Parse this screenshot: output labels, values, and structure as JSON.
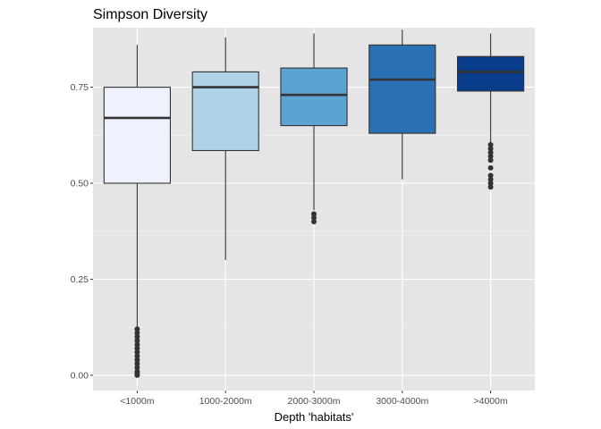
{
  "chart_data": {
    "type": "boxplot",
    "title": "Simpson Diversity",
    "xlabel": "Depth 'habitats'",
    "ylabel": "",
    "ylim": [
      -0.04,
      0.905
    ],
    "yticks": [
      0.0,
      0.25,
      0.5,
      0.75
    ],
    "ytick_labels": [
      "0.00",
      "0.25",
      "0.50",
      "0.75"
    ],
    "grid": true,
    "legend": "none",
    "panel_background": "#e5e5e5",
    "categories": [
      "<1000m",
      "1000-2000m",
      "2000-3000m",
      "3000-4000m",
      ">4000m"
    ],
    "boxes": [
      {
        "label": "<1000m",
        "fill": "#eef2fd",
        "whisker_low": 0.12,
        "q1": 0.5,
        "median": 0.67,
        "q3": 0.75,
        "whisker_high": 0.86,
        "outliers": [
          0.0,
          0.005,
          0.01,
          0.02,
          0.03,
          0.04,
          0.05,
          0.06,
          0.07,
          0.08,
          0.09,
          0.1,
          0.11,
          0.12
        ]
      },
      {
        "label": "1000-2000m",
        "fill": "#b0d2e6",
        "whisker_low": 0.3,
        "q1": 0.585,
        "median": 0.75,
        "q3": 0.79,
        "whisker_high": 0.88,
        "outliers": []
      },
      {
        "label": "2000-3000m",
        "fill": "#5ba3d1",
        "whisker_low": 0.43,
        "q1": 0.65,
        "median": 0.73,
        "q3": 0.8,
        "whisker_high": 0.89,
        "outliers": [
          0.4,
          0.41,
          0.42
        ]
      },
      {
        "label": "3000-4000m",
        "fill": "#2a70b4",
        "whisker_low": 0.51,
        "q1": 0.63,
        "median": 0.77,
        "q3": 0.86,
        "whisker_high": 0.9,
        "outliers": []
      },
      {
        "label": ">4000m",
        "fill": "#0a3c8c",
        "whisker_low": 0.6,
        "q1": 0.74,
        "median": 0.79,
        "q3": 0.83,
        "whisker_high": 0.89,
        "outliers": [
          0.49,
          0.5,
          0.51,
          0.52,
          0.54,
          0.56,
          0.57,
          0.58,
          0.59,
          0.6
        ]
      }
    ]
  }
}
